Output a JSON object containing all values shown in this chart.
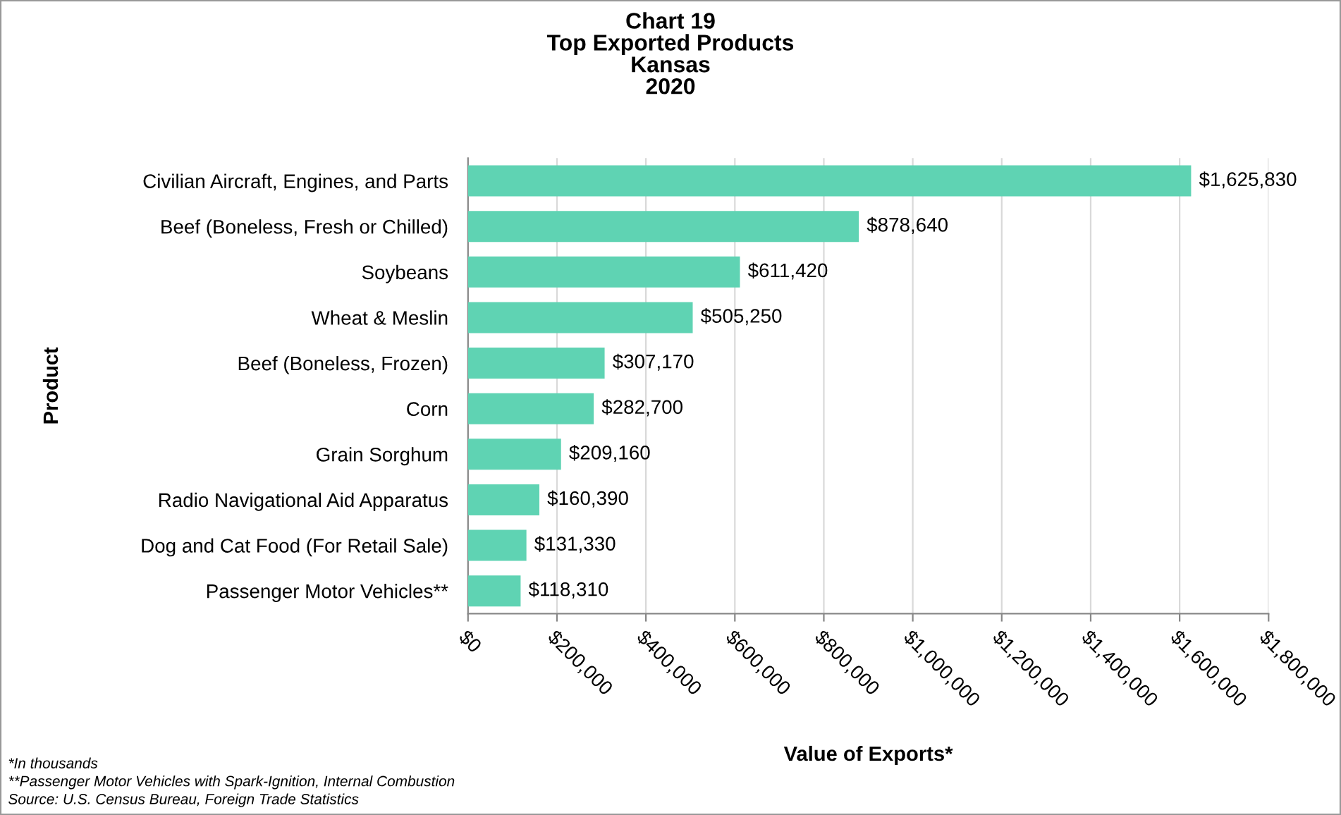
{
  "chart_data": {
    "type": "bar",
    "orientation": "horizontal",
    "title": "Chart 19\nTop Exported Products\nKansas\n2020",
    "xlabel": "Value of Exports*",
    "ylabel": "Product",
    "categories": [
      "Civilian Aircraft, Engines, and Parts",
      "Beef (Boneless, Fresh or Chilled)",
      "Soybeans",
      "Wheat & Meslin",
      "Beef (Boneless, Frozen)",
      "Corn",
      "Grain Sorghum",
      "Radio Navigational Aid Apparatus",
      "Dog and Cat Food (For Retail Sale)",
      "Passenger Motor Vehicles**"
    ],
    "values": [
      1625830,
      878640,
      611420,
      505250,
      307170,
      282700,
      209160,
      160390,
      131330,
      118310
    ],
    "value_labels": [
      "$1,625,830",
      "$878,640",
      "$611,420",
      "$505,250",
      "$307,170",
      "$282,700",
      "$209,160",
      "$160,390",
      "$131,330",
      "$118,310"
    ],
    "color": "#5fd3b3",
    "xlim": [
      0,
      1800000
    ],
    "xticks": [
      {
        "value": 0,
        "label": "$0"
      },
      {
        "value": 200000,
        "label": "$200,000"
      },
      {
        "value": 400000,
        "label": "$400,000"
      },
      {
        "value": 600000,
        "label": "$600,000"
      },
      {
        "value": 800000,
        "label": "$800,000"
      },
      {
        "value": 1000000,
        "label": "$1,000,000"
      },
      {
        "value": 1200000,
        "label": "$1,200,000"
      },
      {
        "value": 1400000,
        "label": "$1,400,000"
      },
      {
        "value": 1600000,
        "label": "$1,600,000"
      },
      {
        "value": 1800000,
        "label": "$1,800,000"
      }
    ],
    "grid": "x",
    "legend": false,
    "annotations": [
      "*In thousands",
      "**Passenger Motor Vehicles with Spark-Ignition, Internal Combustion",
      "Source: U.S. Census Bureau, Foreign Trade Statistics"
    ]
  }
}
